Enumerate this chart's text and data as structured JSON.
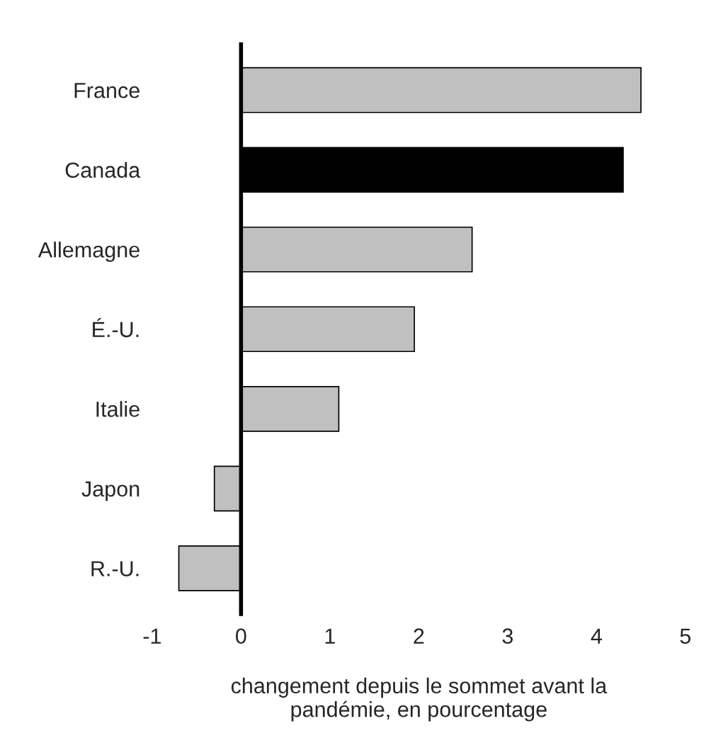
{
  "chart_data": {
    "type": "bar",
    "orientation": "horizontal",
    "categories": [
      "France",
      "Canada",
      "Allemagne",
      "É.-U.",
      "Italie",
      "Japon",
      "R.-U."
    ],
    "values": [
      4.5,
      4.3,
      2.6,
      1.95,
      1.1,
      -0.3,
      -0.7
    ],
    "colors": [
      "#c0c0c0",
      "#000000",
      "#c0c0c0",
      "#c0c0c0",
      "#c0c0c0",
      "#c0c0c0",
      "#c0c0c0"
    ],
    "xlim": [
      -1,
      5
    ],
    "xticks": [
      -1,
      0,
      1,
      2,
      3,
      4,
      5
    ],
    "xlabel": "changement depuis le sommet avant la\npandémie, en pourcentage",
    "ref_lines": [
      {
        "axis": "x",
        "value": 0,
        "color": "#000000"
      }
    ],
    "grid": false,
    "legend": false
  }
}
